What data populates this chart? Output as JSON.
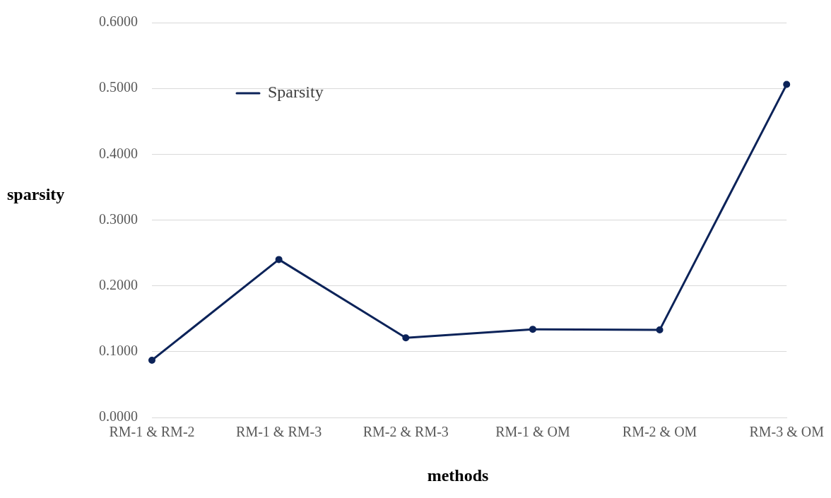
{
  "chart_data": {
    "type": "line",
    "xlabel": "methods",
    "ylabel": "sparsity",
    "categories": [
      "RM-1 & RM-2",
      "RM-1 & RM-3",
      "RM-2 & RM-3",
      "RM-1 & OM",
      "RM-2 & OM",
      "RM-3 & OM"
    ],
    "series": [
      {
        "name": "Sparsity",
        "color": "#0c2359",
        "values": [
          0.087,
          0.24,
          0.121,
          0.134,
          0.133,
          0.506
        ]
      }
    ],
    "ylim": [
      0,
      0.6
    ],
    "yticks": [
      {
        "value": 0,
        "label": "0.0000"
      },
      {
        "value": 0.1,
        "label": "0.1000"
      },
      {
        "value": 0.2,
        "label": "0.2000"
      },
      {
        "value": 0.3,
        "label": "0.3000"
      },
      {
        "value": 0.4,
        "label": "0.4000"
      },
      {
        "value": 0.5,
        "label": "0.5000"
      },
      {
        "value": 0.6,
        "label": "0.6000"
      }
    ],
    "grid": "y",
    "legend": "top left",
    "marker": "circle",
    "line_style": "solid"
  }
}
